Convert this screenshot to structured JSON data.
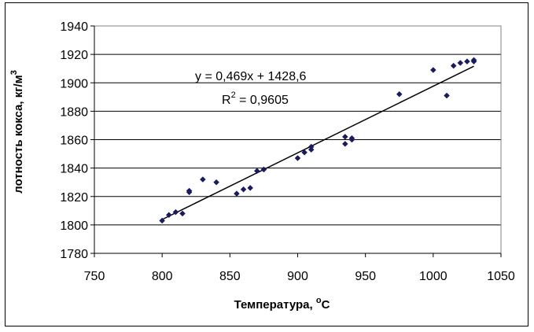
{
  "chart_data": {
    "type": "scatter",
    "title": "",
    "xlabel": "Температура, ",
    "xlabel_sup": "o",
    "xlabel_unit": "C",
    "ylabel": "лотность кокса, кг/м",
    "ylabel_sup": "3",
    "xlim": [
      750,
      1050
    ],
    "ylim": [
      1780,
      1940
    ],
    "xticks": [
      750,
      800,
      850,
      900,
      950,
      1000,
      1050
    ],
    "yticks": [
      1780,
      1800,
      1820,
      1840,
      1860,
      1880,
      1900,
      1920,
      1940
    ],
    "grid": "horizontal",
    "legend": "none",
    "marker_color": "#1a1a5e",
    "points": [
      {
        "x": 800,
        "y": 1803
      },
      {
        "x": 805,
        "y": 1807
      },
      {
        "x": 810,
        "y": 1809
      },
      {
        "x": 815,
        "y": 1808
      },
      {
        "x": 820,
        "y": 1824
      },
      {
        "x": 820,
        "y": 1823
      },
      {
        "x": 830,
        "y": 1832
      },
      {
        "x": 840,
        "y": 1830
      },
      {
        "x": 855,
        "y": 1822
      },
      {
        "x": 860,
        "y": 1825
      },
      {
        "x": 865,
        "y": 1826
      },
      {
        "x": 870,
        "y": 1838
      },
      {
        "x": 875,
        "y": 1839
      },
      {
        "x": 900,
        "y": 1847
      },
      {
        "x": 905,
        "y": 1851
      },
      {
        "x": 910,
        "y": 1853
      },
      {
        "x": 910,
        "y": 1855
      },
      {
        "x": 935,
        "y": 1857
      },
      {
        "x": 935,
        "y": 1862
      },
      {
        "x": 940,
        "y": 1860
      },
      {
        "x": 940,
        "y": 1861
      },
      {
        "x": 975,
        "y": 1892
      },
      {
        "x": 1000,
        "y": 1909
      },
      {
        "x": 1010,
        "y": 1891
      },
      {
        "x": 1015,
        "y": 1912
      },
      {
        "x": 1020,
        "y": 1914
      },
      {
        "x": 1025,
        "y": 1915
      },
      {
        "x": 1030,
        "y": 1915
      },
      {
        "x": 1030,
        "y": 1916
      }
    ],
    "trendline": {
      "slope": 0.469,
      "intercept": 1428.6,
      "x_range": [
        800,
        1030
      ]
    },
    "equation_label": "y = 0,469x + 1428,6",
    "r2_prefix": "R",
    "r2_sup": "2",
    "r2_suffix": " = 0,9605"
  }
}
